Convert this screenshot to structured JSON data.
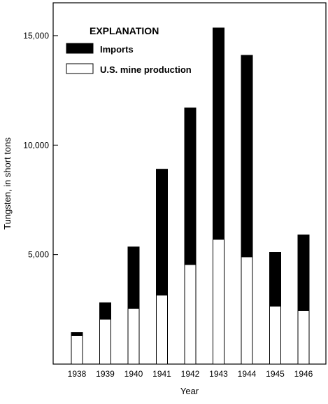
{
  "chart_data": {
    "type": "bar",
    "stacked": true,
    "categories": [
      "1938",
      "1939",
      "1940",
      "1941",
      "1942",
      "1943",
      "1944",
      "1945",
      "1946"
    ],
    "series": [
      {
        "name": "U.S. mine production",
        "color": "#ffffff",
        "values": [
          1300,
          2050,
          2550,
          3150,
          4550,
          5700,
          4900,
          2650,
          2450
        ]
      },
      {
        "name": "Imports",
        "color": "#000000",
        "values": [
          150,
          750,
          2800,
          5750,
          7150,
          9650,
          9200,
          2450,
          3450
        ]
      }
    ],
    "title": "",
    "xlabel": "Year",
    "ylabel": "Tungsten, in short tons",
    "ylim": [
      0,
      16500
    ],
    "yticks": [
      5000,
      10000,
      15000
    ],
    "ytick_labels": [
      "5,000",
      "10,000",
      "15,000"
    ],
    "legend": {
      "title": "EXPLANATION",
      "placement": "top-left",
      "entries": [
        "Imports",
        "U.S. mine production"
      ]
    },
    "grid": false
  }
}
